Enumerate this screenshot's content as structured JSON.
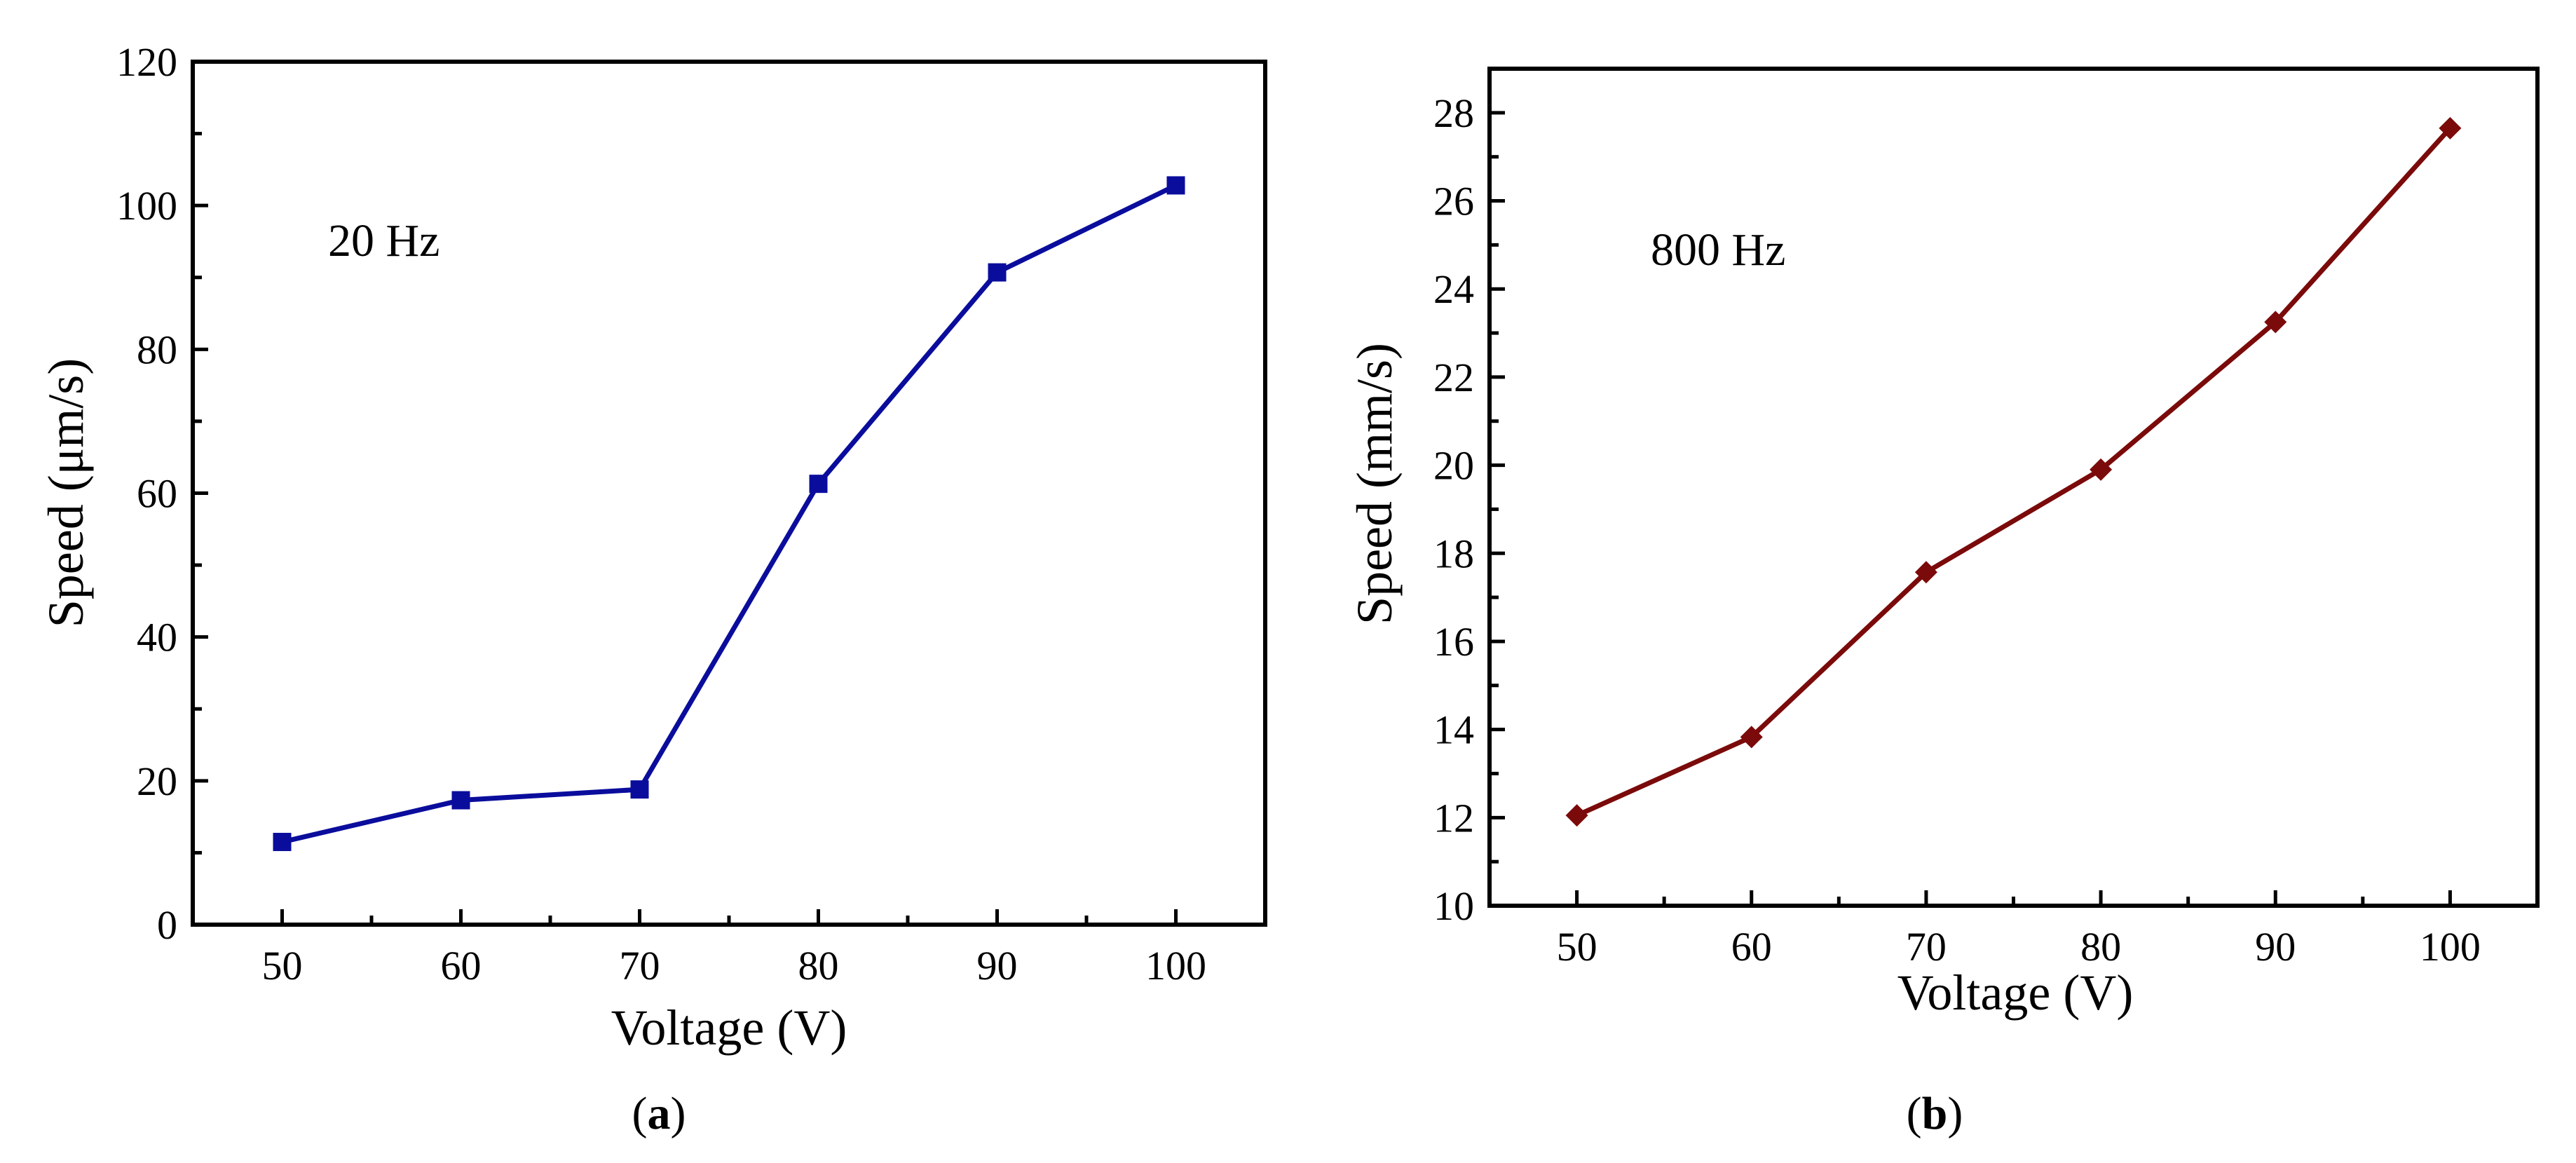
{
  "chart_data": [
    {
      "id": "a",
      "type": "line",
      "x": [
        50,
        60,
        70,
        80,
        90,
        100
      ],
      "series": [
        {
          "name": "20 Hz",
          "values": [
            11.5,
            17.3,
            18.8,
            61.3,
            90.7,
            102.8
          ],
          "color": "#0a0d9c",
          "marker": "square"
        }
      ],
      "annotation": "20 Hz",
      "xlabel": "Voltage (V)",
      "ylabel": "Speed (μm/s)",
      "xlim": [
        45,
        105
      ],
      "ylim": [
        0,
        120
      ],
      "xticks": [
        50,
        60,
        70,
        80,
        90,
        100
      ],
      "yticks": [
        0,
        20,
        40,
        60,
        80,
        100,
        120
      ],
      "caption_letter": "a"
    },
    {
      "id": "b",
      "type": "line",
      "x": [
        50,
        60,
        70,
        80,
        90,
        100
      ],
      "series": [
        {
          "name": "800 Hz",
          "values": [
            12.05,
            13.83,
            17.57,
            19.9,
            23.25,
            27.65
          ],
          "color": "#7b0a0a",
          "marker": "diamond"
        }
      ],
      "annotation": "800 Hz",
      "xlabel": "Voltage (V)",
      "ylabel": "Speed (mm/s)",
      "xlim": [
        45,
        105
      ],
      "ylim": [
        10,
        29
      ],
      "xticks": [
        50,
        60,
        70,
        80,
        90,
        100
      ],
      "yticks": [
        10,
        12,
        14,
        16,
        18,
        20,
        22,
        24,
        26,
        28
      ],
      "caption_letter": "b"
    }
  ]
}
